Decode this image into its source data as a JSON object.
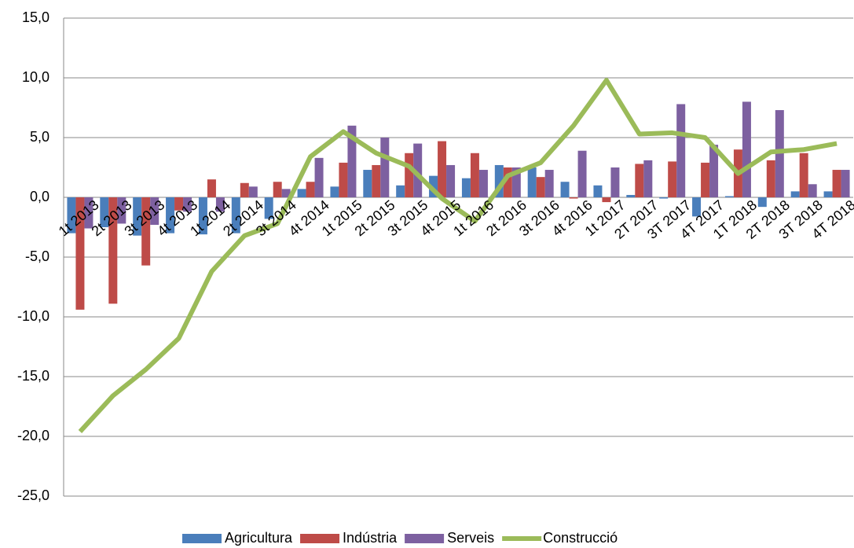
{
  "chart_data": {
    "type": "bar",
    "categories": [
      "1t 2013",
      "2t 2013",
      "3t 2013",
      "4t 2013",
      "1t 2014",
      "2t 2014",
      "3t 2014",
      "4t 2014",
      "1t 2015",
      "2t 2015",
      "3t 2015",
      "4t 2015",
      "1t 2016",
      "2t 2016",
      "3t 2016",
      "4t 2016",
      "1t 2017",
      "2T 2017",
      "3T 2017",
      "4T 2017",
      "1T 2018",
      "2T 2018",
      "3T 2018",
      "4T 2018"
    ],
    "series": [
      {
        "name": "Agricultura",
        "color": "#4a7ebb",
        "values": [
          -3.0,
          -2.5,
          -3.2,
          -3.0,
          -3.1,
          -3.0,
          -1.8,
          0.7,
          0.9,
          2.3,
          1.0,
          1.8,
          1.6,
          2.7,
          2.5,
          1.3,
          1.0,
          0.2,
          -0.1,
          -1.6,
          0.1,
          -0.8,
          0.5,
          0.5
        ]
      },
      {
        "name": "Indústria",
        "color": "#be4b48",
        "values": [
          -9.4,
          -8.9,
          -5.7,
          -1.1,
          1.5,
          1.2,
          1.3,
          1.3,
          2.9,
          2.7,
          3.7,
          4.7,
          3.7,
          2.5,
          1.7,
          -0.1,
          -0.4,
          2.8,
          3.0,
          2.9,
          4.0,
          3.1,
          3.7,
          2.3
        ]
      },
      {
        "name": "Serveis",
        "color": "#7d60a0",
        "values": [
          -2.6,
          -2.2,
          -2.3,
          -1.2,
          -1.2,
          0.9,
          0.7,
          3.3,
          6.0,
          5.0,
          4.5,
          2.7,
          2.3,
          2.5,
          2.3,
          3.9,
          2.5,
          3.1,
          7.8,
          4.4,
          8.0,
          7.3,
          1.1,
          2.3
        ]
      },
      {
        "name": "Construcció",
        "type": "line",
        "color": "#9bbb59",
        "values": [
          -19.6,
          -16.6,
          -14.4,
          -11.8,
          -6.2,
          -3.2,
          -2.2,
          3.4,
          5.5,
          3.7,
          2.6,
          -0.1,
          -2.0,
          1.8,
          2.9,
          6.0,
          9.8,
          5.3,
          5.4,
          5.0,
          2.0,
          3.8,
          4.0,
          4.5
        ]
      }
    ],
    "ylim": [
      -25,
      15
    ],
    "yticks": [
      {
        "value": -25,
        "label": "-25,0"
      },
      {
        "value": -20,
        "label": "-20,0"
      },
      {
        "value": -15,
        "label": "-15,0"
      },
      {
        "value": -10,
        "label": "-10,0"
      },
      {
        "value": -5,
        "label": "-5,0"
      },
      {
        "value": 0,
        "label": "0,0"
      },
      {
        "value": 5,
        "label": "5,0"
      },
      {
        "value": 10,
        "label": "10,0"
      },
      {
        "value": 15,
        "label": "15,0"
      }
    ],
    "grid": true,
    "legend": "bottom"
  }
}
